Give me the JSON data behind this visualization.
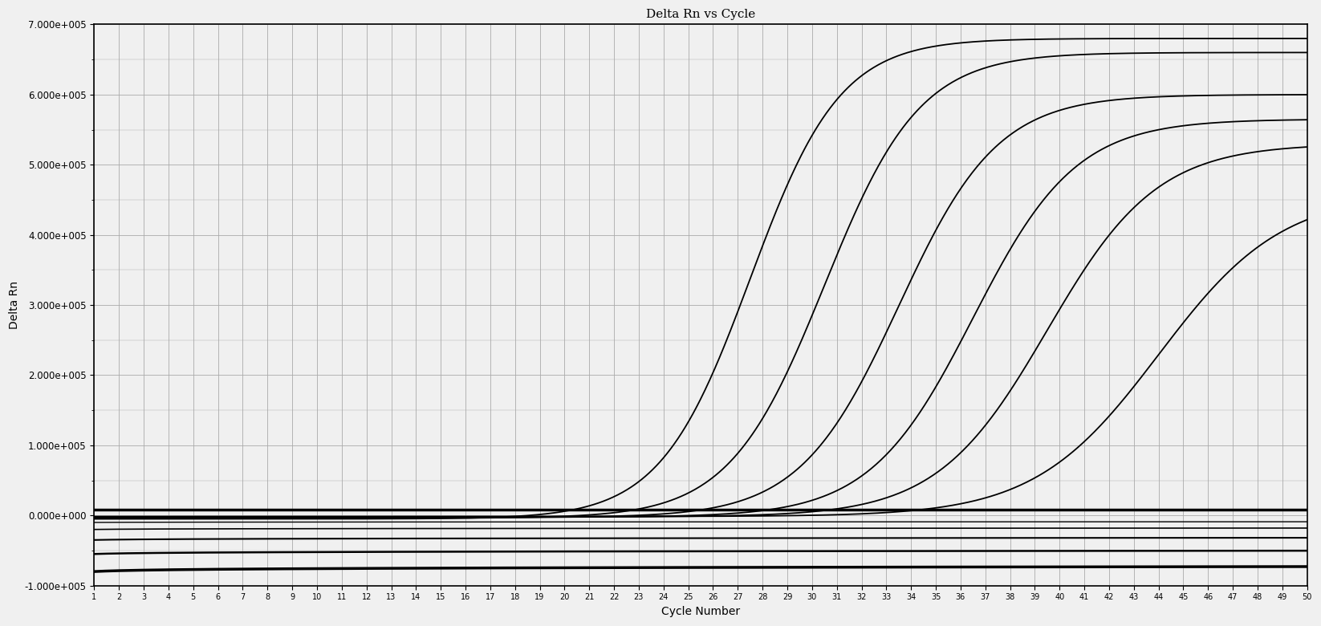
{
  "title": "Delta Rn vs Cycle",
  "xlabel": "Cycle Number",
  "ylabel": "Delta Rn",
  "xlim": [
    1,
    50
  ],
  "ylim": [
    -100000.0,
    700000.0
  ],
  "yticks": [
    -100000,
    0,
    100000,
    200000,
    300000,
    400000,
    500000,
    600000,
    700000
  ],
  "background_color": "#f0f0f0",
  "grid_color": "#aaaaaa",
  "line_color": "#000000",
  "threshold_line_y": 8000,
  "curves": [
    {
      "midpoint": 27.5,
      "max": 680000,
      "min": -5000,
      "steepness": 0.55
    },
    {
      "midpoint": 30.5,
      "max": 660000,
      "min": -4000,
      "steepness": 0.52
    },
    {
      "midpoint": 33.5,
      "max": 600000,
      "min": -3000,
      "steepness": 0.5
    },
    {
      "midpoint": 36.5,
      "max": 565000,
      "min": -2500,
      "steepness": 0.48
    },
    {
      "midpoint": 39.5,
      "max": 530000,
      "min": -2000,
      "steepness": 0.45
    },
    {
      "midpoint": 44.0,
      "max": 460000,
      "min": -1500,
      "steepness": 0.4
    }
  ],
  "neg_lines": [
    {
      "y_intercept": -80000,
      "slope": 1800,
      "linewidth": 2.5
    },
    {
      "y_intercept": -55000,
      "slope": 1200,
      "linewidth": 1.8
    },
    {
      "y_intercept": -35000,
      "slope": 800,
      "linewidth": 1.5
    },
    {
      "y_intercept": -20000,
      "slope": 500,
      "linewidth": 1.2
    },
    {
      "y_intercept": -10000,
      "slope": 250,
      "linewidth": 1.0
    }
  ]
}
